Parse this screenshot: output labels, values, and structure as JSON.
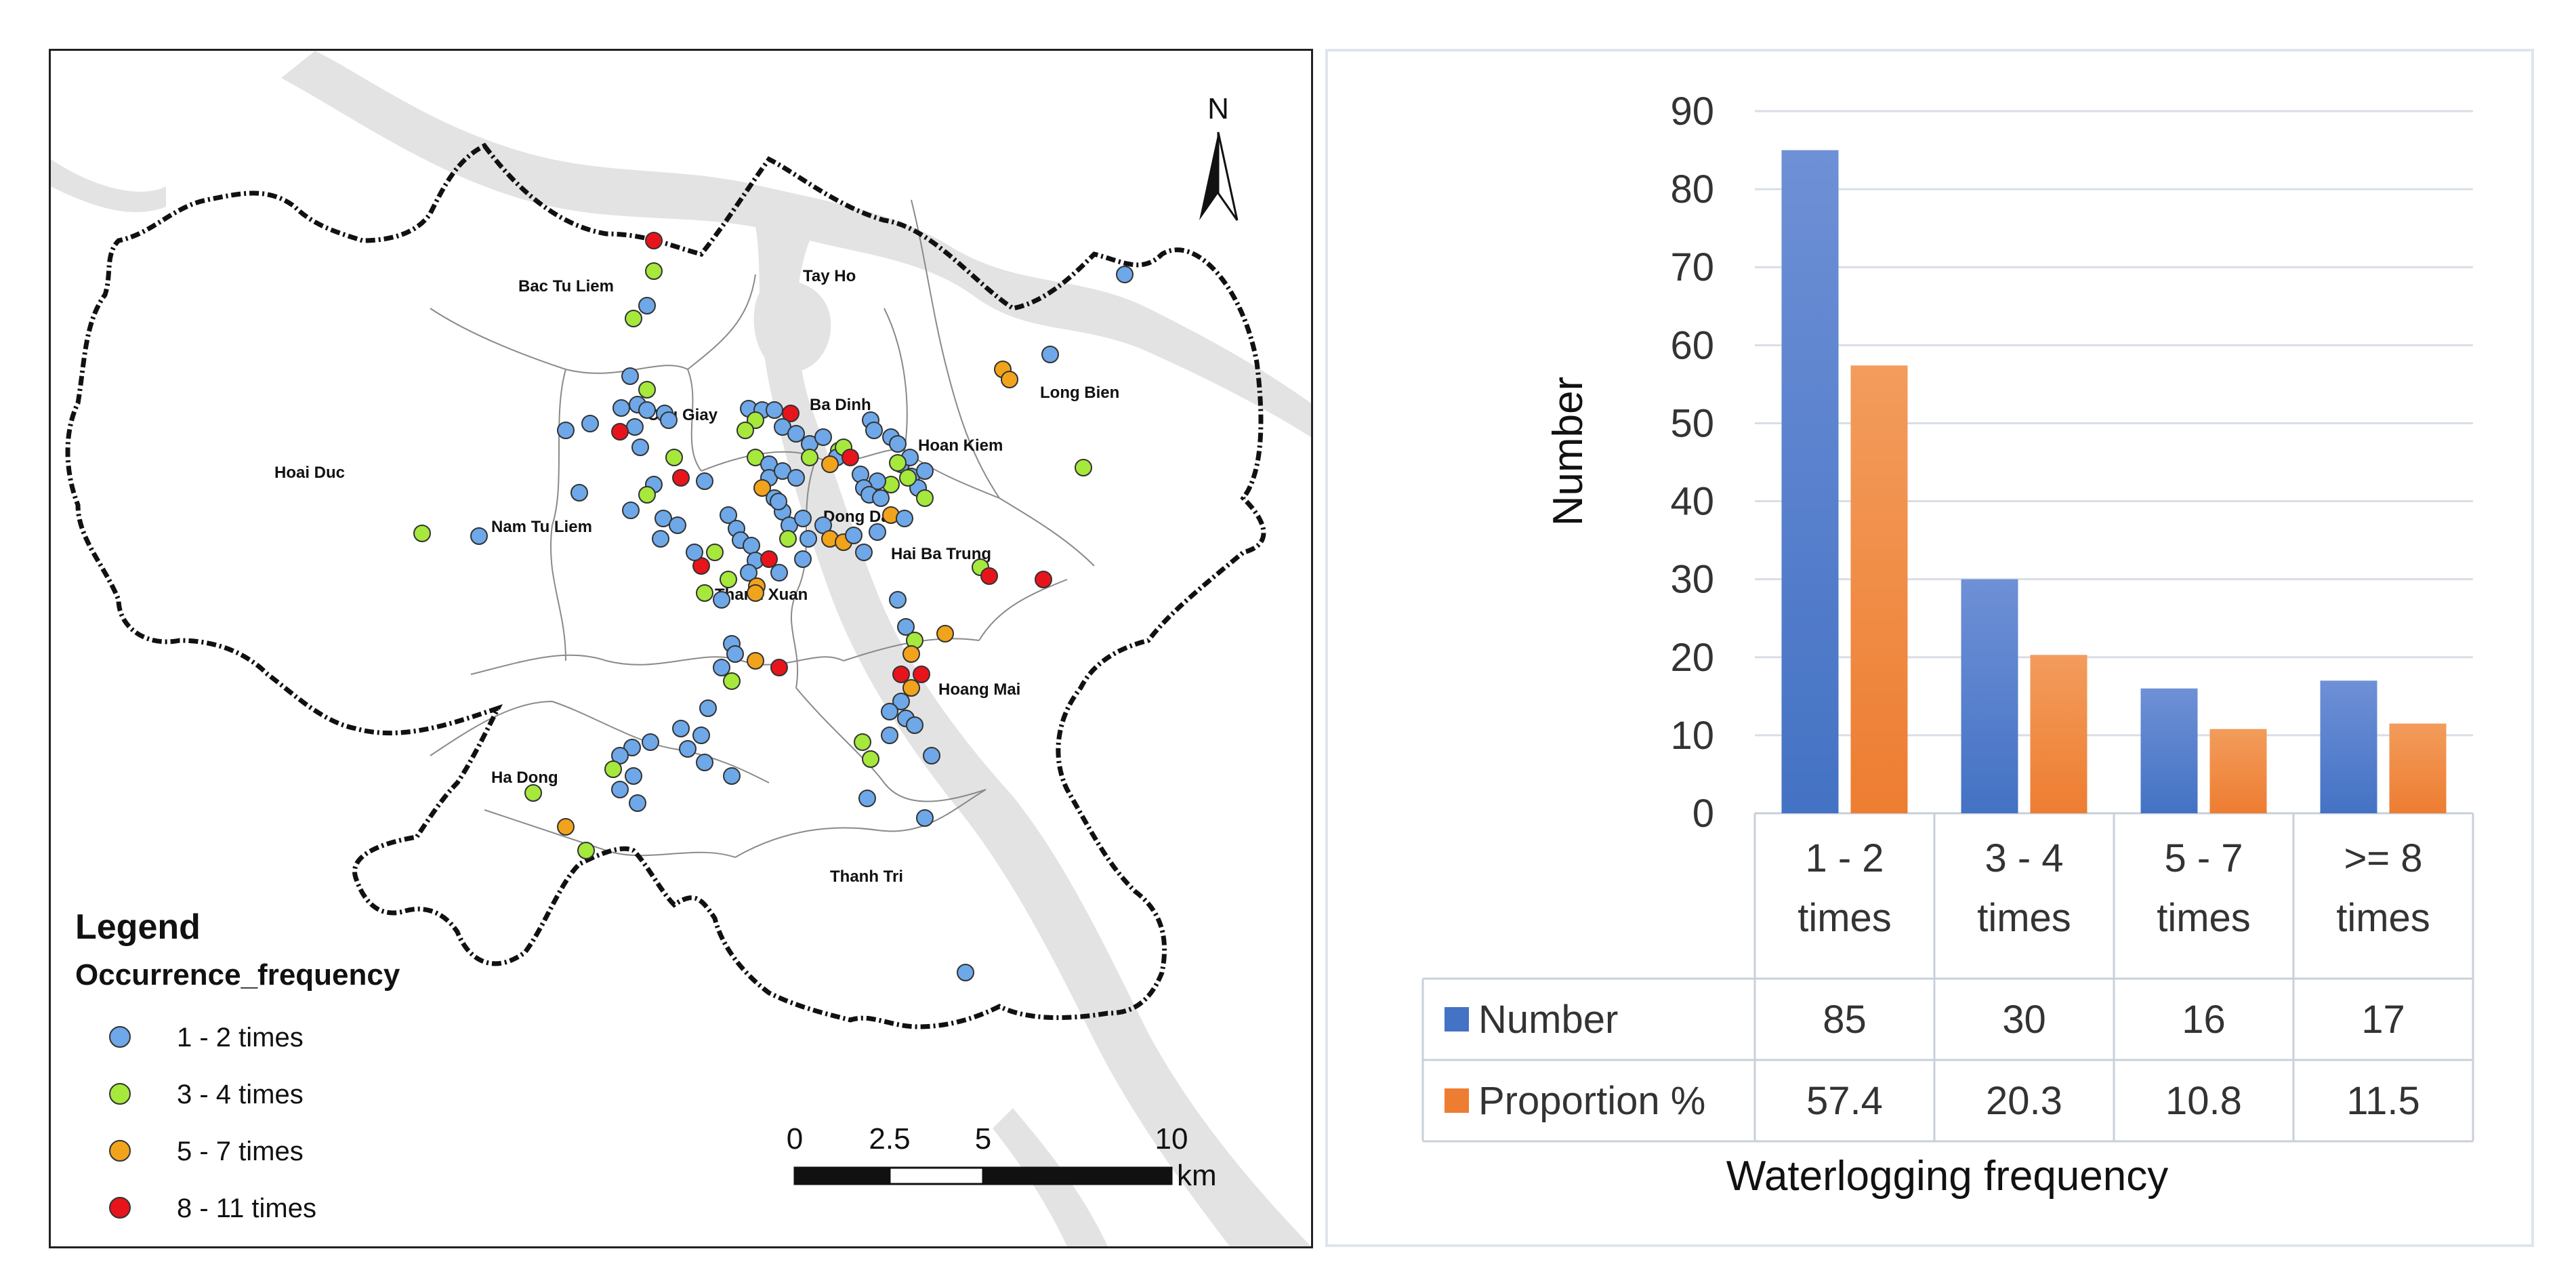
{
  "map": {
    "districts": [
      {
        "name": "Bac Tu Liem"
      },
      {
        "name": "Tay Ho"
      },
      {
        "name": "Long Bien"
      },
      {
        "name": "Cau Giay"
      },
      {
        "name": "Ba Dinh"
      },
      {
        "name": "Hoan Kiem"
      },
      {
        "name": "Hoai Duc"
      },
      {
        "name": "Nam Tu Liem"
      },
      {
        "name": "Dong Da"
      },
      {
        "name": "Hai Ba Trung"
      },
      {
        "name": "Thanh Xuan"
      },
      {
        "name": "Hoang Mai"
      },
      {
        "name": "Ha Dong"
      },
      {
        "name": "Thanh Tri"
      }
    ],
    "north_arrow_label": "N",
    "legend": {
      "title": "Legend",
      "field": "Occurrence_frequency",
      "items": [
        {
          "label": "1 - 2 times",
          "color": "#6ea8e8"
        },
        {
          "label": "3 - 4 times",
          "color": "#a6e83c"
        },
        {
          "label": "5 - 7 times",
          "color": "#f2a31c"
        },
        {
          "label": "8 - 11 times",
          "color": "#e8141c"
        }
      ]
    },
    "scale_bar": {
      "ticks": [
        "0",
        "2.5",
        "5",
        "10"
      ],
      "unit": "km"
    }
  },
  "chart_data": {
    "type": "bar",
    "categories": [
      "1 - 2 times",
      "3 - 4 times",
      "5 - 7 times",
      ">= 8 times"
    ],
    "category_lines": [
      [
        "1 - 2",
        "times"
      ],
      [
        "3 - 4",
        "times"
      ],
      [
        "5 - 7",
        "times"
      ],
      [
        ">= 8",
        "times"
      ]
    ],
    "series": [
      {
        "name": "Number",
        "values": [
          85,
          30,
          16,
          17
        ],
        "labels": [
          "85",
          "30",
          "16",
          "17"
        ],
        "color": "#4472c4"
      },
      {
        "name": "Proportion %",
        "values": [
          57.4,
          20.3,
          10.8,
          11.5
        ],
        "labels": [
          "57.4",
          "20.3",
          "10.8",
          "11.5"
        ],
        "color": "#ed7d31"
      }
    ],
    "ylabel": "Number",
    "xlabel": "Waterlogging frequency",
    "ylim": [
      0,
      90
    ],
    "yticks": [
      0,
      10,
      20,
      30,
      40,
      50,
      60,
      70,
      80,
      90
    ],
    "grid": true,
    "data_table": true
  }
}
